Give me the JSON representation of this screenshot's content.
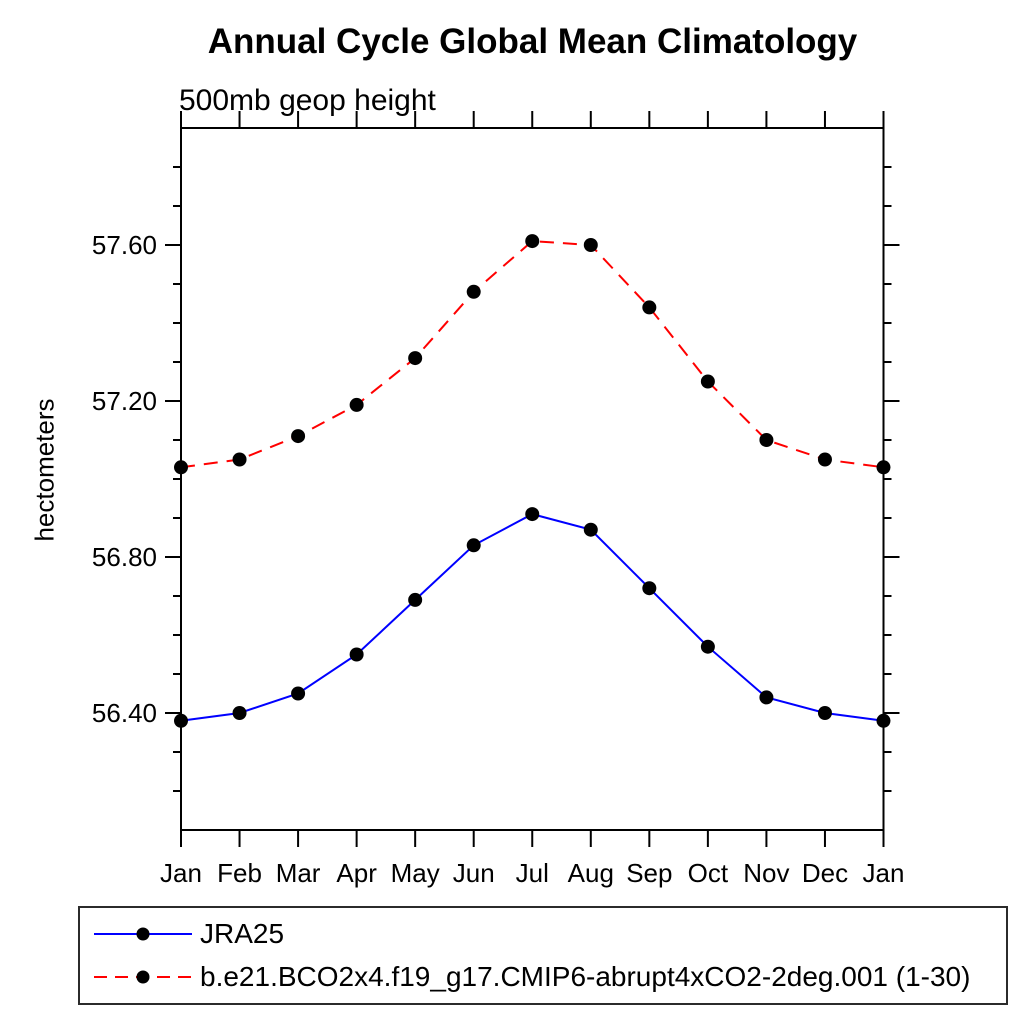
{
  "chart": {
    "title": "Annual Cycle Global Mean Climatology",
    "subtitle": "500mb geop height",
    "ylabel": "hectometers"
  },
  "legend": {
    "position": "bottom-left",
    "entries": [
      {
        "label": "JRA25",
        "color": "#0000ff",
        "line_style": "solid",
        "marker": "black-dot"
      },
      {
        "label": "b.e21.BCO2x4.f19_g17.CMIP6-abrupt4xCO2-2deg.001 (1-30)",
        "color": "#ff0000",
        "line_style": "dashed",
        "marker": "black-dot"
      }
    ]
  },
  "chart_data": {
    "type": "line",
    "title": "Annual Cycle Global Mean Climatology",
    "subtitle": "500mb geop height",
    "xlabel": "",
    "ylabel": "hectometers",
    "categories": [
      "Jan",
      "Feb",
      "Mar",
      "Apr",
      "May",
      "Jun",
      "Jul",
      "Aug",
      "Sep",
      "Oct",
      "Nov",
      "Dec",
      "Jan"
    ],
    "series": [
      {
        "name": "JRA25",
        "color": "#0000ff",
        "line_style": "solid",
        "marker": "black-dot",
        "values": [
          56.38,
          56.4,
          56.45,
          56.55,
          56.69,
          56.83,
          56.91,
          56.87,
          56.72,
          56.57,
          56.44,
          56.4,
          56.38
        ]
      },
      {
        "name": "b.e21.BCO2x4.f19_g17.CMIP6-abrupt4xCO2-2deg.001 (1-30)",
        "color": "#ff0000",
        "line_style": "dashed",
        "marker": "black-dot",
        "values": [
          57.03,
          57.05,
          57.11,
          57.19,
          57.31,
          57.48,
          57.61,
          57.6,
          57.44,
          57.25,
          57.1,
          57.05,
          57.03
        ]
      }
    ],
    "ylim": [
      56.1,
      57.9
    ],
    "yticks_major": [
      56.4,
      56.8,
      57.2,
      57.6
    ],
    "ytick_labels": [
      "56.40",
      "56.80",
      "57.20",
      "57.60"
    ],
    "ytick_minor_step": 0.1,
    "grid": false,
    "frame": "box",
    "legend_position": "bottom-left"
  }
}
